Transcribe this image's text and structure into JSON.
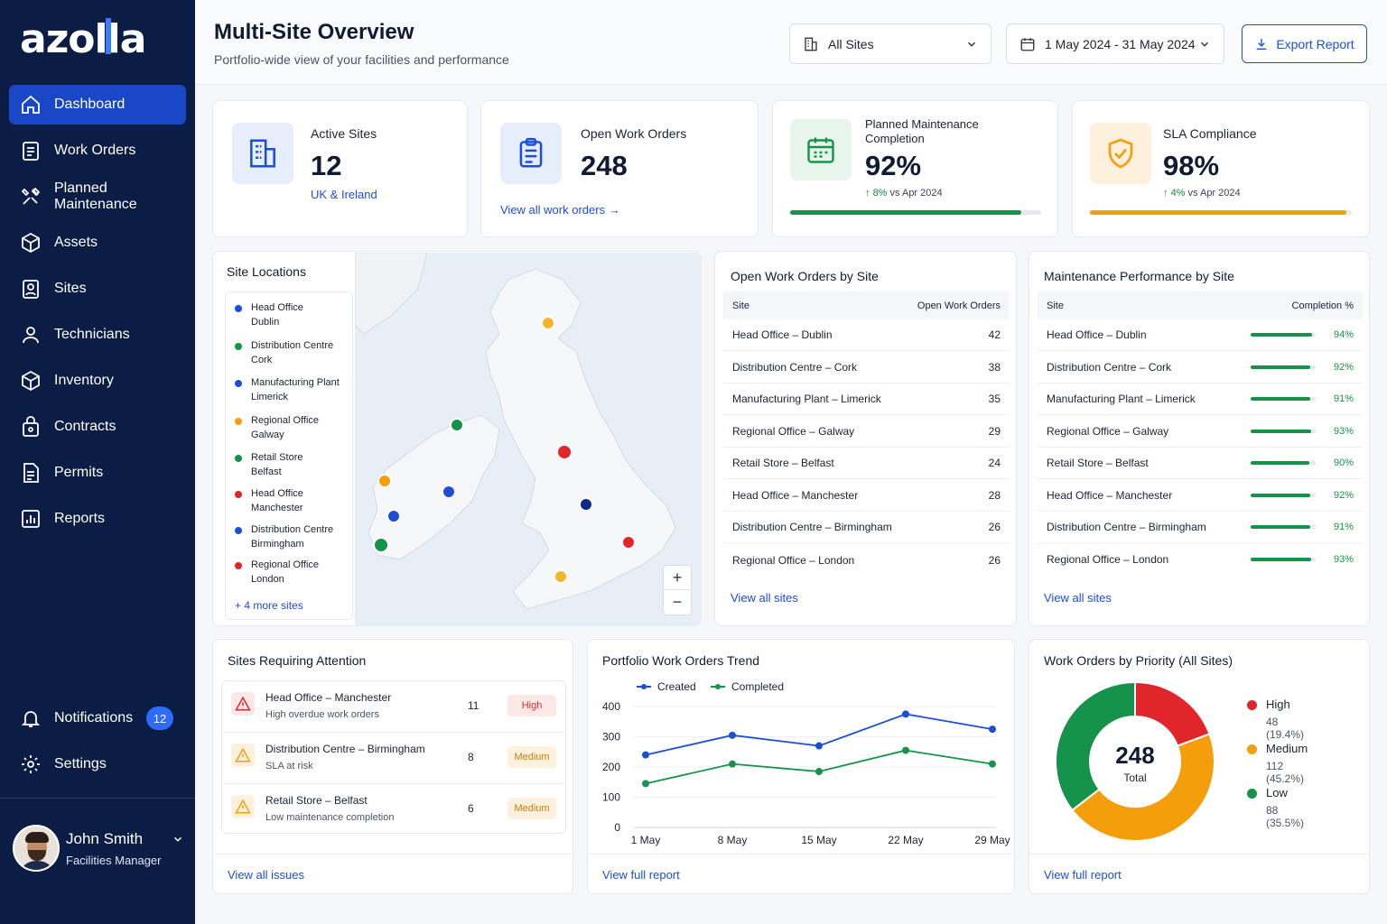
{
  "brand": {
    "name": "azolla"
  },
  "nav": {
    "items": [
      {
        "label": "Dashboard",
        "icon": "home-icon"
      },
      {
        "label": "Work Orders",
        "icon": "clipboard-icon"
      },
      {
        "label": "Planned Maintenance",
        "icon": "tools-icon"
      },
      {
        "label": "Assets",
        "icon": "cube-icon"
      },
      {
        "label": "Sites",
        "icon": "location-icon"
      },
      {
        "label": "Technicians",
        "icon": "user-icon"
      },
      {
        "label": "Inventory",
        "icon": "box-icon"
      },
      {
        "label": "Contracts",
        "icon": "lock-icon"
      },
      {
        "label": "Permits",
        "icon": "document-icon"
      },
      {
        "label": "Reports",
        "icon": "chart-icon"
      }
    ],
    "notifications": {
      "label": "Notifications",
      "count": "12"
    },
    "settings": {
      "label": "Settings"
    }
  },
  "user": {
    "name": "John Smith",
    "role": "Facilities Manager"
  },
  "header": {
    "title": "Multi-Site Overview",
    "subtitle": "Portfolio-wide view of your facilities and performance",
    "site_select": "All Sites",
    "date_range": "1 May 2024 - 31 May 2024",
    "export_label": "Export Report"
  },
  "kpis": {
    "active_sites": {
      "label": "Active Sites",
      "value": "12",
      "sub": "UK & Ireland"
    },
    "open_work_orders": {
      "label": "Open Work Orders",
      "value": "248",
      "link": "View all work orders"
    },
    "planned_maintenance": {
      "label": "Planned Maintenance Completion",
      "value": "92%",
      "delta": "8%",
      "delta_text": "vs Apr 2024",
      "progress": 0.92,
      "color": "#16934a"
    },
    "sla": {
      "label": "SLA Compliance",
      "value": "98%",
      "delta": "4%",
      "delta_text": "vs Apr 2024",
      "progress": 0.98,
      "color": "#f59e0b"
    }
  },
  "site_locations": {
    "title": "Site Locations",
    "legend": [
      {
        "name": "Head Office",
        "city": "Dublin",
        "color": "#1d4ed8"
      },
      {
        "name": "Distribution Centre",
        "city": "Cork",
        "color": "#16934a"
      },
      {
        "name": "Manufacturing Plant",
        "city": "Limerick",
        "color": "#1d4ed8"
      },
      {
        "name": "Regional Office",
        "city": "Galway",
        "color": "#f59e0b"
      },
      {
        "name": "Retail Store",
        "city": "Belfast",
        "color": "#16934a"
      },
      {
        "name": "Head Office",
        "city": "Manchester",
        "color": "#e0262b"
      },
      {
        "name": "Distribution Centre",
        "city": "Birmingham",
        "color": "#1d4ed8"
      },
      {
        "name": "Regional Office",
        "city": "London",
        "color": "#e0262b"
      }
    ],
    "more": "+ 4 more sites"
  },
  "open_by_site": {
    "title": "Open Work Orders by Site",
    "col_site": "Site",
    "col_value": "Open Work Orders",
    "rows": [
      {
        "site": "Head Office – Dublin",
        "value": "42"
      },
      {
        "site": "Distribution Centre – Cork",
        "value": "38"
      },
      {
        "site": "Manufacturing Plant – Limerick",
        "value": "35"
      },
      {
        "site": "Regional Office – Galway",
        "value": "29"
      },
      {
        "site": "Retail Store – Belfast",
        "value": "24"
      },
      {
        "site": "Head Office – Manchester",
        "value": "28"
      },
      {
        "site": "Distribution Centre – Birmingham",
        "value": "26"
      },
      {
        "site": "Regional Office – London",
        "value": "26"
      }
    ],
    "link": "View all sites"
  },
  "perf_by_site": {
    "title": "Maintenance Performance by Site",
    "col_site": "Site",
    "col_value": "Completion %",
    "rows": [
      {
        "site": "Head Office – Dublin",
        "pct": "94%",
        "value": 0.94
      },
      {
        "site": "Distribution Centre – Cork",
        "pct": "92%",
        "value": 0.92
      },
      {
        "site": "Manufacturing Plant – Limerick",
        "pct": "91%",
        "value": 0.91
      },
      {
        "site": "Regional Office – Galway",
        "pct": "93%",
        "value": 0.93
      },
      {
        "site": "Retail Store – Belfast",
        "pct": "90%",
        "value": 0.9
      },
      {
        "site": "Head Office – Manchester",
        "pct": "92%",
        "value": 0.92
      },
      {
        "site": "Distribution Centre – Birmingham",
        "pct": "91%",
        "value": 0.91
      },
      {
        "site": "Regional Office – London",
        "pct": "93%",
        "value": 0.93
      }
    ],
    "link": "View all sites"
  },
  "attention": {
    "title": "Sites Requiring Attention",
    "rows": [
      {
        "site": "Head Office – Manchester",
        "issue": "High overdue work orders",
        "count": "11",
        "priority": "High"
      },
      {
        "site": "Distribution Centre – Birmingham",
        "issue": "SLA at risk",
        "count": "8",
        "priority": "Medium"
      },
      {
        "site": "Retail Store – Belfast",
        "issue": "Low maintenance completion",
        "count": "6",
        "priority": "Medium"
      }
    ],
    "link": "View all issues"
  },
  "trend": {
    "title": "Portfolio Work Orders Trend",
    "link": "View full report"
  },
  "priority": {
    "title": "Work Orders by Priority (All Sites)",
    "total": "248",
    "total_label": "Total",
    "link": "View full report",
    "items": [
      {
        "label": "High",
        "detail": "48 (19.4%)",
        "value": 48,
        "color": "#e0262b"
      },
      {
        "label": "Medium",
        "detail": "112 (45.2%)",
        "value": 112,
        "color": "#f59e0b"
      },
      {
        "label": "Low",
        "detail": "88 (35.5%)",
        "value": 88,
        "color": "#16934a"
      }
    ]
  },
  "chart_data": [
    {
      "type": "line",
      "x": [
        "1 May",
        "8 May",
        "15 May",
        "22 May",
        "29 May"
      ],
      "series": [
        {
          "name": "Created",
          "values": [
            240,
            305,
            270,
            375,
            325
          ],
          "color": "#1d4ed8"
        },
        {
          "name": "Completed",
          "values": [
            145,
            210,
            185,
            255,
            210
          ],
          "color": "#16934a"
        }
      ],
      "yticks": [
        "0",
        "100",
        "200",
        "300",
        "400"
      ],
      "ylim": [
        0,
        400
      ],
      "grid": true,
      "legend": "top-left"
    },
    {
      "type": "pie",
      "categories": [
        "High",
        "Medium",
        "Low"
      ],
      "values": [
        48,
        112,
        88
      ]
    }
  ]
}
